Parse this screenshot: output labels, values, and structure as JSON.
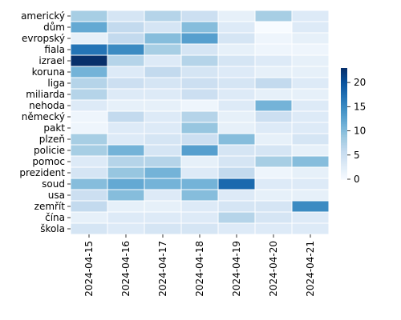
{
  "chart_data": {
    "type": "heatmap",
    "title": "",
    "xlabel": "",
    "ylabel": "",
    "x_categories": [
      "2024-04-15",
      "2024-04-16",
      "2024-04-17",
      "2024-04-18",
      "2024-04-19",
      "2024-04-20",
      "2024-04-21"
    ],
    "y_categories": [
      "americký",
      "dům",
      "evropský",
      "fiala",
      "izrael",
      "koruna",
      "liga",
      "miliarda",
      "nehoda",
      "německý",
      "pakt",
      "plzeň",
      "policie",
      "pomoc",
      "prezident",
      "soud",
      "usa",
      "zemřít",
      "čína",
      "škola"
    ],
    "values": [
      [
        8,
        4,
        7,
        5,
        2,
        8,
        3
      ],
      [
        12,
        6,
        4,
        10,
        3,
        0,
        3
      ],
      [
        2,
        6,
        10,
        13,
        4,
        1,
        2
      ],
      [
        17,
        15,
        8,
        4,
        2,
        1,
        1
      ],
      [
        23,
        7,
        3,
        7,
        4,
        3,
        2
      ],
      [
        11,
        3,
        6,
        4,
        3,
        2,
        2
      ],
      [
        7,
        5,
        4,
        5,
        4,
        6,
        3
      ],
      [
        7,
        3,
        3,
        5,
        3,
        2,
        2
      ],
      [
        3,
        2,
        2,
        1,
        3,
        11,
        3
      ],
      [
        1,
        6,
        3,
        7,
        2,
        5,
        3
      ],
      [
        1,
        3,
        3,
        9,
        2,
        3,
        3
      ],
      [
        8,
        3,
        4,
        5,
        10,
        2,
        4
      ],
      [
        8,
        11,
        4,
        13,
        4,
        4,
        2
      ],
      [
        3,
        7,
        7,
        2,
        4,
        8,
        10
      ],
      [
        4,
        9,
        11,
        3,
        6,
        1,
        2
      ],
      [
        10,
        12,
        11,
        11,
        18,
        3,
        3
      ],
      [
        5,
        10,
        3,
        10,
        3,
        2,
        2
      ],
      [
        6,
        2,
        2,
        3,
        4,
        4,
        15
      ],
      [
        2,
        3,
        3,
        3,
        7,
        4,
        3
      ],
      [
        4,
        3,
        4,
        4,
        3,
        3,
        3
      ]
    ],
    "vmin": 0,
    "vmax": 23,
    "colorbar_ticks": [
      0,
      5,
      10,
      15,
      20
    ],
    "colormap": "Blues",
    "grid": "white cell borders",
    "legend": "colorbar right"
  }
}
